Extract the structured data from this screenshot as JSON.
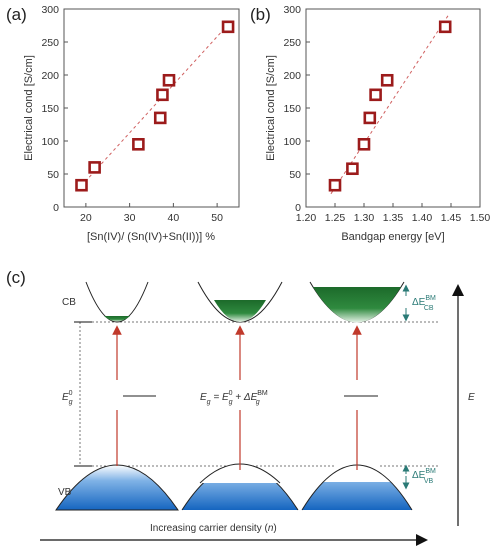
{
  "panels": {
    "a": "(a)",
    "b": "(b)",
    "c": "(c)"
  },
  "chart_data": [
    {
      "type": "scatter",
      "panel": "(a)",
      "xlabel": "[Sn(IV)/ (Sn(IV)+Sn(II))] %",
      "ylabel": "Electrical cond [S/cm]",
      "xlim": [
        15,
        55
      ],
      "ylim": [
        0,
        300
      ],
      "xticks": [
        20,
        30,
        40,
        50
      ],
      "yticks": [
        0,
        50,
        100,
        150,
        200,
        250,
        300
      ],
      "grid": false,
      "marker": "open-square",
      "marker_color": "#9c1b1b",
      "trendline": {
        "style": "dashed",
        "color": "#d06060",
        "from": [
          18,
          25
        ],
        "to": [
          53,
          280
        ]
      },
      "points": [
        {
          "x": 19.0,
          "y": 33
        },
        {
          "x": 22.0,
          "y": 60
        },
        {
          "x": 32.0,
          "y": 95
        },
        {
          "x": 37.0,
          "y": 135
        },
        {
          "x": 37.5,
          "y": 170
        },
        {
          "x": 39.0,
          "y": 192
        },
        {
          "x": 52.5,
          "y": 273
        }
      ]
    },
    {
      "type": "scatter",
      "panel": "(b)",
      "xlabel": "Bandgap energy [eV]",
      "ylabel": "Electrical cond [S/cm]",
      "xlim": [
        1.2,
        1.5
      ],
      "ylim": [
        0,
        300
      ],
      "xticks": [
        1.2,
        1.25,
        1.3,
        1.35,
        1.4,
        1.45,
        1.5
      ],
      "xtick_labels": [
        "1.20",
        "1.25",
        "1.30",
        "1.35",
        "1.40",
        "1.45",
        "1.50"
      ],
      "yticks": [
        0,
        50,
        100,
        150,
        200,
        250,
        300
      ],
      "grid": false,
      "marker": "open-square",
      "marker_color": "#9c1b1b",
      "trendline": {
        "style": "dashed",
        "color": "#d06060",
        "from": [
          1.243,
          20
        ],
        "to": [
          1.445,
          290
        ]
      },
      "points": [
        {
          "x": 1.25,
          "y": 33
        },
        {
          "x": 1.28,
          "y": 58
        },
        {
          "x": 1.3,
          "y": 95
        },
        {
          "x": 1.31,
          "y": 135
        },
        {
          "x": 1.32,
          "y": 170
        },
        {
          "x": 1.34,
          "y": 192
        },
        {
          "x": 1.44,
          "y": 273
        }
      ]
    }
  ],
  "diagram": {
    "cb_label": "CB",
    "vb_label": "VB",
    "eg0_label": "E",
    "eg0_sup": "0",
    "eg0_sub": "g",
    "eq_main": "E",
    "eq_sub": "g",
    "eq_mid": " = E",
    "eq_sup2": "0",
    "eq_sub2": "g",
    "eq_plus": " + ΔE",
    "eq_sup3": "BM",
    "eq_sub3": "g",
    "dcb_main": "ΔE",
    "dcb_sup": "BM",
    "dcb_sub": "CB",
    "dvb_main": "ΔE",
    "dvb_sup": "BM",
    "dvb_sub": "VB",
    "e_axis_label": "E",
    "bottom_axis_label": "Increasing carrier density (",
    "bottom_axis_n": "n",
    "bottom_axis_close": ")",
    "colors": {
      "cb_fill": "#1f6e2e",
      "vb_fill": "#1a6fc4",
      "arrow": "#c0392b",
      "teal": "#2a7a76"
    }
  }
}
